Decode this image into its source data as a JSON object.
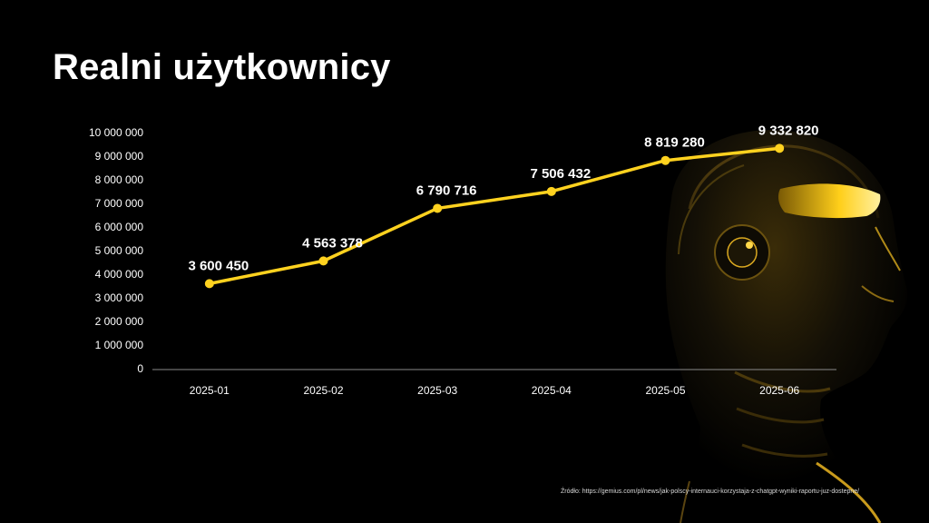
{
  "slide": {
    "title": "Realni użytkownicy",
    "source": "Źródło: https://gemius.com/pl/news/jak-polscy-internauci-korzystaja-z-chatgpt-wyniki-raportu-juz-dostepne/"
  },
  "colors": {
    "background": "#000000",
    "line": "#ffd21f",
    "text": "#ffffff",
    "axis": "#8a8a8a"
  },
  "chart_data": {
    "type": "line",
    "title": "",
    "xlabel": "",
    "ylabel": "",
    "categories": [
      "2025-01",
      "2025-02",
      "2025-03",
      "2025-04",
      "2025-05",
      "2025-06"
    ],
    "values": [
      3600450,
      4563378,
      6790716,
      7506432,
      8819280,
      9332820
    ],
    "data_labels": [
      "3 600 450",
      "4 563 378",
      "6 790 716",
      "7 506 432",
      "8 819 280",
      "9 332 820"
    ],
    "y_ticks": [
      0,
      1000000,
      2000000,
      3000000,
      4000000,
      5000000,
      6000000,
      7000000,
      8000000,
      9000000,
      10000000
    ],
    "y_tick_labels": [
      "0",
      "1 000 000",
      "2 000 000",
      "3 000 000",
      "4 000 000",
      "5 000 000",
      "6 000 000",
      "7 000 000",
      "8 000 000",
      "9 000 000",
      "10 000 000"
    ],
    "ylim": [
      0,
      10000000
    ],
    "grid": false,
    "legend": "none"
  }
}
